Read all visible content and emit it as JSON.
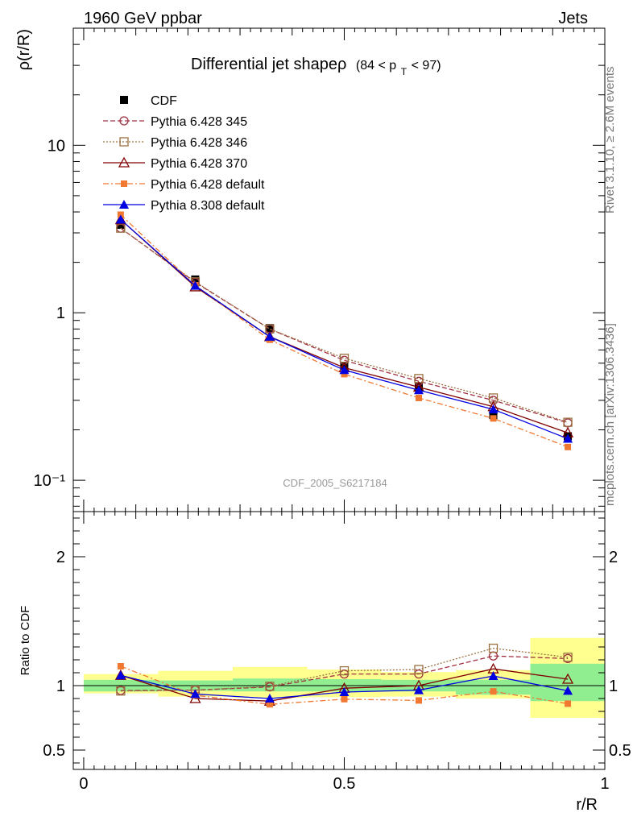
{
  "header": {
    "left": "1960 GeV ppbar",
    "right": "Jets"
  },
  "side": {
    "top": "Rivet 3.1.10, ≥ 2.6M events",
    "bottom": "mcplots.cern.ch [arXiv:1306.3436]"
  },
  "chart_data": [
    {
      "type": "line",
      "title": "Differential jet shapeρ",
      "title_suffix": "(84 < p",
      "title_sub": "T",
      "title_end": " < 97)",
      "watermark": "CDF_2005_S6217184",
      "ylabel": "ρ(r/R)",
      "xlabel": "r/R",
      "yscale": "log",
      "xlim": [
        -0.02,
        1.0
      ],
      "ylim": [
        0.065,
        50
      ],
      "yticks": [
        {
          "value": 10,
          "label": "10"
        },
        {
          "value": 1,
          "label": "1"
        },
        {
          "value": 0.1,
          "label": "10⁻¹"
        }
      ],
      "x": [
        0.071,
        0.214,
        0.357,
        0.5,
        0.643,
        0.786,
        0.929
      ],
      "series": [
        {
          "name": "CDF",
          "color": "#000000",
          "marker": "filled-square",
          "line": "none",
          "values": [
            3.35,
            1.58,
            0.81,
            0.48,
            0.36,
            0.245,
            0.183
          ]
        },
        {
          "name": "Pythia 6.428 345",
          "color": "#a03040",
          "marker": "open-circle",
          "line": "dashed",
          "values": [
            3.2,
            1.52,
            0.8,
            0.52,
            0.39,
            0.3,
            0.22
          ]
        },
        {
          "name": "Pythia 6.428 346",
          "color": "#9a7040",
          "marker": "open-square",
          "line": "dotted",
          "values": [
            3.2,
            1.53,
            0.8,
            0.535,
            0.405,
            0.31,
            0.222
          ]
        },
        {
          "name": "Pythia 6.428 370",
          "color": "#800000",
          "marker": "open-triangle",
          "line": "solid",
          "values": [
            3.6,
            1.43,
            0.72,
            0.47,
            0.36,
            0.275,
            0.192
          ]
        },
        {
          "name": "Pythia 6.428 default",
          "color": "#f07830",
          "marker": "filled-square-small",
          "line": "dashdot",
          "values": [
            3.85,
            1.46,
            0.69,
            0.43,
            0.31,
            0.234,
            0.158
          ]
        },
        {
          "name": "Pythia 8.308 default",
          "color": "#0000e0",
          "marker": "filled-triangle",
          "line": "solid",
          "values": [
            3.6,
            1.45,
            0.72,
            0.455,
            0.345,
            0.265,
            0.177
          ]
        }
      ]
    },
    {
      "type": "line",
      "ylabel": "Ratio to CDF",
      "xlabel": "r/R",
      "xlim": [
        -0.02,
        1.0
      ],
      "ylim": [
        0.35,
        2.35
      ],
      "yticks": [
        {
          "value": 2,
          "label": "2"
        },
        {
          "value": 1,
          "label": "1"
        },
        {
          "value": 0.5,
          "label": "0.5"
        }
      ],
      "xticks": [
        {
          "value": 0,
          "label": "0"
        },
        {
          "value": 0.5,
          "label": "0.5"
        },
        {
          "value": 1,
          "label": "1"
        }
      ],
      "bins": [
        [
          0.0,
          0.143
        ],
        [
          0.143,
          0.286
        ],
        [
          0.286,
          0.429
        ],
        [
          0.429,
          0.571
        ],
        [
          0.571,
          0.714
        ],
        [
          0.714,
          0.857
        ],
        [
          0.857,
          1.0
        ]
      ],
      "band_stat": [
        [
          0.955,
          1.045
        ],
        [
          0.96,
          1.04
        ],
        [
          0.955,
          1.055
        ],
        [
          0.955,
          1.05
        ],
        [
          0.955,
          1.045
        ],
        [
          0.93,
          1.045
        ],
        [
          0.88,
          1.17
        ]
      ],
      "band_total": [
        [
          0.94,
          1.09
        ],
        [
          0.915,
          1.115
        ],
        [
          0.905,
          1.145
        ],
        [
          0.91,
          1.125
        ],
        [
          0.915,
          1.105
        ],
        [
          0.9,
          1.12
        ],
        [
          0.75,
          1.37
        ]
      ],
      "band_colors": {
        "stat": "#90ee90",
        "total": "#ffff90"
      },
      "x": [
        0.071,
        0.214,
        0.357,
        0.5,
        0.643,
        0.786,
        0.929
      ],
      "series": [
        {
          "name": "Pythia 6.428 345",
          "color": "#a03040",
          "marker": "open-circle",
          "line": "dashed",
          "values": [
            0.962,
            0.965,
            0.99,
            1.09,
            1.09,
            1.23,
            1.21
          ]
        },
        {
          "name": "Pythia 6.428 346",
          "color": "#9a7040",
          "marker": "open-square",
          "line": "dotted",
          "values": [
            0.958,
            0.965,
            0.995,
            1.115,
            1.125,
            1.29,
            1.22
          ]
        },
        {
          "name": "Pythia 6.428 370",
          "color": "#800000",
          "marker": "open-triangle",
          "line": "solid",
          "values": [
            1.08,
            0.9,
            0.88,
            0.98,
            1.0,
            1.13,
            1.05
          ]
        },
        {
          "name": "Pythia 6.428 default",
          "color": "#f07830",
          "marker": "filled-square-small",
          "line": "dashdot",
          "values": [
            1.15,
            0.925,
            0.855,
            0.895,
            0.885,
            0.955,
            0.86
          ]
        },
        {
          "name": "Pythia 8.308 default",
          "color": "#0000e0",
          "marker": "filled-triangle",
          "line": "solid",
          "values": [
            1.08,
            0.935,
            0.9,
            0.95,
            0.965,
            1.075,
            0.96
          ]
        }
      ]
    }
  ]
}
